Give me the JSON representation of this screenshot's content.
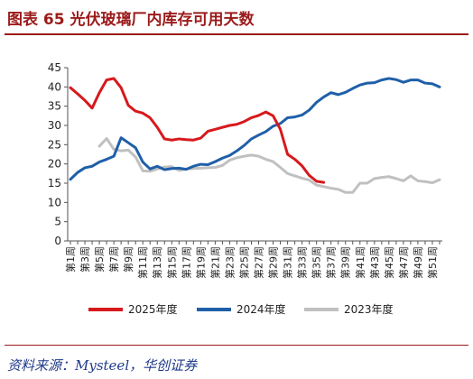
{
  "header": {
    "title": "图表 65    光伏玻璃厂内库存可用天数"
  },
  "footer": {
    "source": "资料来源：Mysteel，华创证券"
  },
  "chart_data": {
    "type": "line",
    "ylim": [
      0,
      45
    ],
    "yticks": [
      0,
      5,
      10,
      15,
      20,
      25,
      30,
      35,
      40,
      45
    ],
    "categories": [
      "第1周",
      "第2周",
      "第3周",
      "第4周",
      "第5周",
      "第6周",
      "第7周",
      "第8周",
      "第9周",
      "第10周",
      "第11周",
      "第12周",
      "第13周",
      "第14周",
      "第15周",
      "第16周",
      "第17周",
      "第18周",
      "第19周",
      "第20周",
      "第21周",
      "第22周",
      "第23周",
      "第24周",
      "第25周",
      "第26周",
      "第27周",
      "第28周",
      "第29周",
      "第30周",
      "第31周",
      "第32周",
      "第33周",
      "第34周",
      "第35周",
      "第36周",
      "第37周",
      "第38周",
      "第39周",
      "第40周",
      "第41周",
      "第42周",
      "第43周",
      "第44周",
      "第45周",
      "第46周",
      "第47周",
      "第48周",
      "第49周",
      "第50周",
      "第51周",
      "第52周"
    ],
    "xticks": [
      "第1周",
      "第3周",
      "第5周",
      "第7周",
      "第9周",
      "第11周",
      "第13周",
      "第15周",
      "第17周",
      "第19周",
      "第21周",
      "第23周",
      "第25周",
      "第27周",
      "第29周",
      "第31周",
      "第33周",
      "第35周",
      "第37周",
      "第39周",
      "第41周",
      "第43周",
      "第45周",
      "第47周",
      "第49周",
      "第51周"
    ],
    "grid": false,
    "legend_position": "bottom",
    "series": [
      {
        "name": "2025年度",
        "color": "#d7191c",
        "values": [
          39.8,
          38.2,
          36.5,
          34.5,
          38.5,
          41.8,
          42.2,
          39.8,
          35.2,
          33.7,
          33.2,
          32.0,
          29.5,
          26.5,
          26.2,
          26.5,
          26.3,
          26.2,
          26.7,
          28.5,
          29.0,
          29.5,
          30.0,
          30.3,
          31.0,
          32.0,
          32.6,
          33.5,
          32.5,
          29.0,
          22.5,
          21.2,
          19.5,
          17.0,
          15.5,
          15.2,
          null,
          null,
          null,
          null,
          null,
          null,
          null,
          null,
          null,
          null,
          null,
          null,
          null,
          null,
          null,
          null
        ]
      },
      {
        "name": "2024年度",
        "color": "#1f5fa8",
        "values": [
          16.0,
          17.8,
          19.0,
          19.4,
          20.5,
          21.2,
          22.0,
          26.8,
          25.5,
          24.2,
          20.5,
          18.7,
          19.4,
          18.5,
          18.8,
          18.9,
          18.6,
          19.4,
          19.9,
          19.8,
          20.6,
          21.5,
          22.2,
          23.4,
          24.8,
          26.5,
          27.5,
          28.4,
          29.8,
          30.5,
          32.0,
          32.2,
          32.7,
          34.0,
          36.0,
          37.4,
          38.5,
          38.0,
          38.6,
          39.6,
          40.5,
          41.0,
          41.1,
          41.8,
          42.2,
          41.9,
          41.2,
          41.8,
          41.8,
          41.0,
          40.8,
          40.0
        ]
      },
      {
        "name": "2023年度",
        "color": "#c0c0c0",
        "values": [
          null,
          null,
          null,
          null,
          24.6,
          26.6,
          23.8,
          23.4,
          23.6,
          21.8,
          18.2,
          18.1,
          18.7,
          19.2,
          19.3,
          18.3,
          18.7,
          18.8,
          18.9,
          19.0,
          19.1,
          19.6,
          21.0,
          21.6,
          22.0,
          22.3,
          22.0,
          21.2,
          20.6,
          19.1,
          17.5,
          16.9,
          16.3,
          15.8,
          14.5,
          14.1,
          13.7,
          13.4,
          12.6,
          12.6,
          15.0,
          15.0,
          16.2,
          16.5,
          16.7,
          16.2,
          15.6,
          16.9,
          15.6,
          15.4,
          15.1,
          15.9
        ]
      }
    ]
  }
}
